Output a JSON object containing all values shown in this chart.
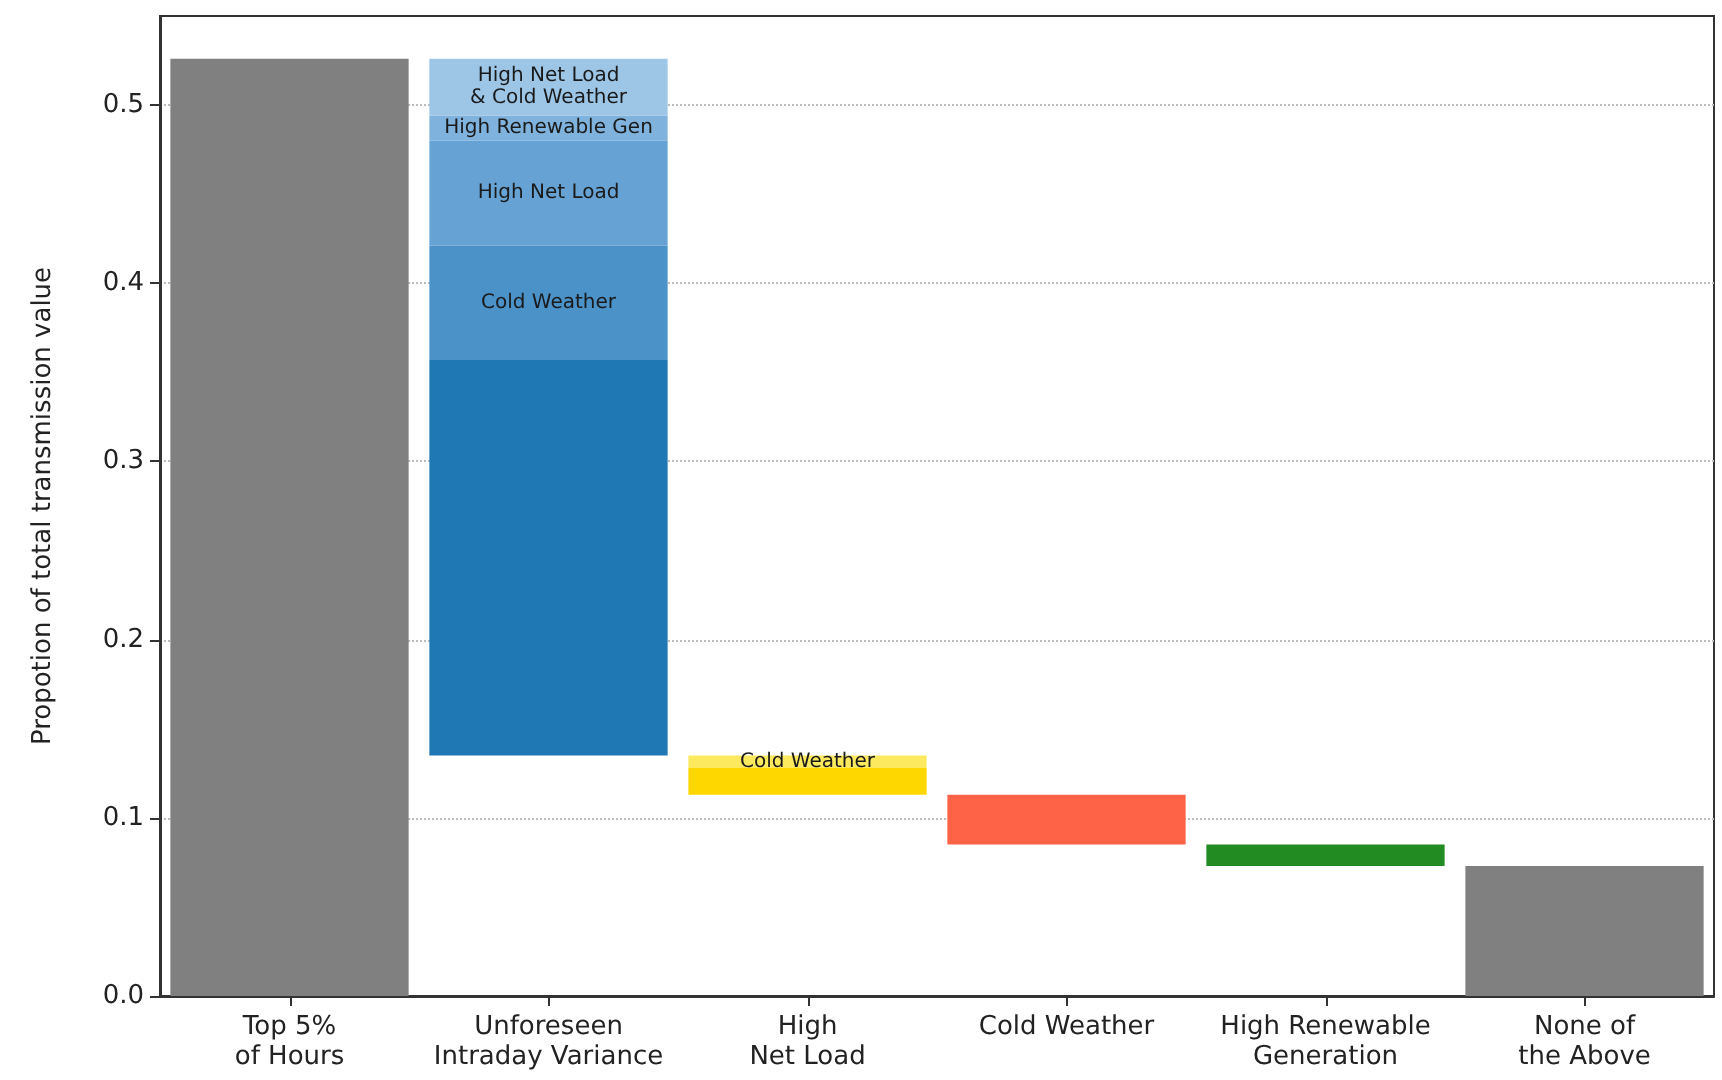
{
  "chart_data": {
    "type": "bar",
    "ylabel": "Propotion of total transmission value",
    "categories": [
      "Top 5%\nof Hours",
      "Unforeseen\nIntraday Variance",
      "High\nNet Load",
      "Cold Weather",
      "High Renewable\nGeneration",
      "None of\nthe Above"
    ],
    "series": [
      {
        "color": "#808080",
        "values": [
          0.526,
          null,
          null,
          null,
          null,
          0.073
        ],
        "base": [
          0,
          null,
          null,
          null,
          null,
          0
        ]
      },
      {
        "color": "#1f77b4",
        "values": [
          null,
          0.222,
          null,
          null,
          null,
          null
        ],
        "base": [
          null,
          0.135,
          null,
          null,
          null,
          null
        ]
      },
      {
        "name": "Cold Weather",
        "color": "#4b92c9",
        "values": [
          null,
          0.064,
          null,
          null,
          null,
          null
        ],
        "base": [
          null,
          0.357,
          null,
          null,
          null,
          null
        ]
      },
      {
        "name": "High Net Load",
        "color": "#66a3d4",
        "values": [
          null,
          0.059,
          null,
          null,
          null,
          null
        ],
        "base": [
          null,
          0.421,
          null,
          null,
          null,
          null
        ]
      },
      {
        "name": "High Renewable Gen",
        "color": "#7fb3dd",
        "values": [
          null,
          0.014,
          null,
          null,
          null,
          null
        ],
        "base": [
          null,
          0.48,
          null,
          null,
          null,
          null
        ]
      },
      {
        "name": "High Net Load\n& Cold Weather",
        "color": "#9cc5e6",
        "values": [
          null,
          0.032,
          null,
          null,
          null,
          null
        ],
        "base": [
          null,
          0.494,
          null,
          null,
          null,
          null
        ]
      },
      {
        "color": "#ffd700",
        "values": [
          null,
          null,
          0.015,
          null,
          null,
          null
        ],
        "base": [
          null,
          null,
          0.113,
          null,
          null,
          null
        ]
      },
      {
        "name": "Cold Weather",
        "color": "#fde95e",
        "values": [
          null,
          null,
          0.007,
          null,
          null,
          null
        ],
        "base": [
          null,
          null,
          0.128,
          null,
          null,
          null
        ]
      },
      {
        "color": "#ff6347",
        "values": [
          null,
          null,
          null,
          0.028,
          null,
          null
        ],
        "base": [
          null,
          null,
          null,
          0.085,
          null,
          null
        ]
      },
      {
        "color": "#228b22",
        "values": [
          null,
          null,
          null,
          null,
          0.012,
          null
        ],
        "base": [
          null,
          null,
          null,
          null,
          0.073,
          null
        ]
      }
    ],
    "ylim": [
      0,
      0.55
    ],
    "yticks": [
      {
        "value": 0,
        "label": "0.0"
      },
      {
        "value": 0.1,
        "label": "0.1"
      },
      {
        "value": 0.2,
        "label": "0.2"
      },
      {
        "value": 0.3,
        "label": "0.3"
      },
      {
        "value": 0.4,
        "label": "0.4"
      },
      {
        "value": 0.5,
        "label": "0.5"
      }
    ],
    "grid": "y",
    "legend": false
  }
}
